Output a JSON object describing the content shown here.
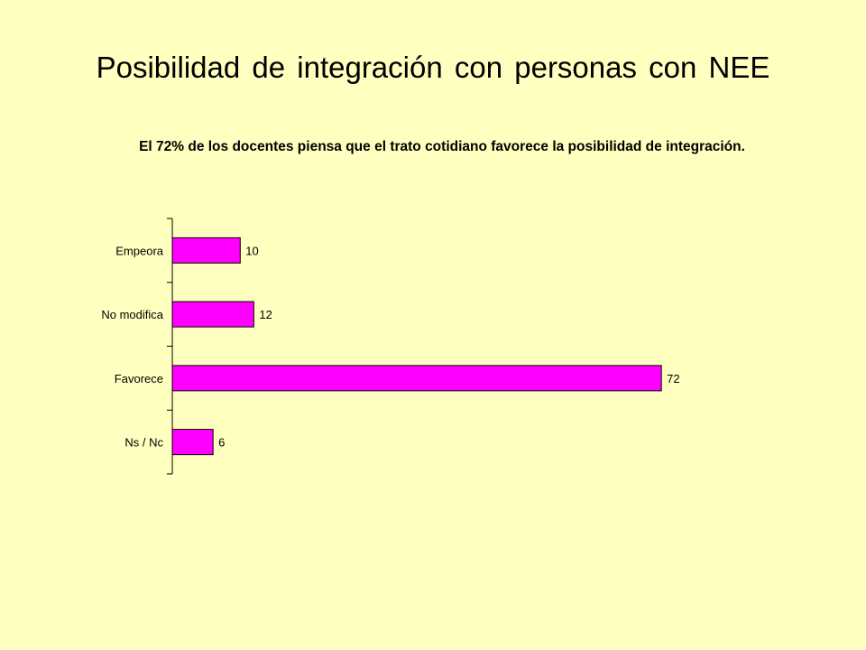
{
  "slide": {
    "title": "Posibilidad de integración con personas con NEE",
    "subtitle": "El 72% de los docentes piensa que el trato cotidiano favorece la posibilidad de integración."
  },
  "colors": {
    "background": "#FFFFC0",
    "bar_fill": "#FF00FF",
    "bar_stroke": "#000000"
  },
  "chart_data": {
    "type": "bar",
    "orientation": "horizontal",
    "categories": [
      "Empeora",
      "No modifica",
      "Favorece",
      "Ns / Nc"
    ],
    "values": [
      10,
      12,
      72,
      6
    ],
    "data_labels": [
      "10",
      "12",
      "72",
      "6"
    ],
    "xlim": [
      0,
      80
    ],
    "grid": false,
    "legend": "none"
  }
}
